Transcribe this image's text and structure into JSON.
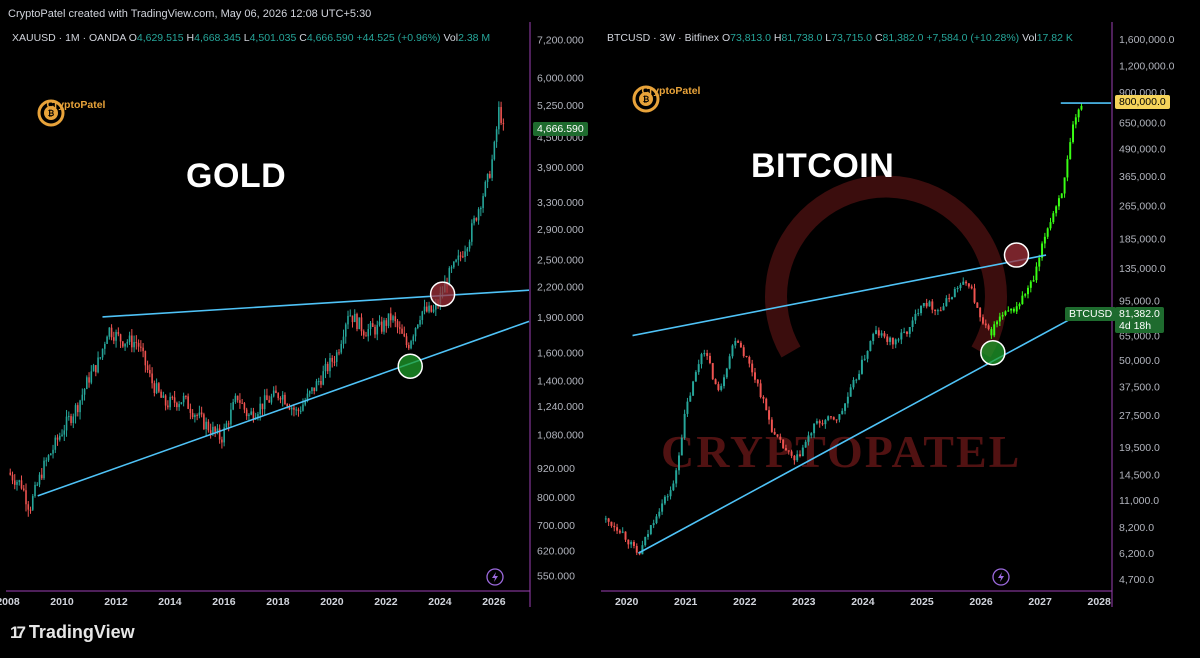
{
  "header": {
    "text": "CryptoPatel created with TradingView.com, May 06, 2026 12:08 UTC+5:30"
  },
  "footer": {
    "brand": "TradingView",
    "mark": "17"
  },
  "colors": {
    "bull": "#26a69a",
    "bear": "#ef5350",
    "trend": "#4fc3f7",
    "neon": "#39ff14",
    "axis": "#9b3fb3",
    "bg": "#000000",
    "label_green": "#1e6b2e",
    "label_yellow": "#f5d35a"
  },
  "left": {
    "ohlc": {
      "symbol": "XAUUSD · 1M · OANDA",
      "o_label": "O",
      "o": "4,629.515",
      "h_label": "H",
      "h": "4,668.345",
      "l_label": "L",
      "l": "4,501.035",
      "c_label": "C",
      "c": "4,666.590",
      "change": "+44.525 (+0.96%)",
      "vol_label": "Vol",
      "vol": "2.38 M"
    },
    "title": "GOLD",
    "logo_text": "CryptoPatel",
    "price_label": "4,666.590",
    "icon": "lightning-icon"
  },
  "right": {
    "ohlc": {
      "symbol": "BTCUSD · 3W · Bitfinex",
      "o_label": "O",
      "o": "73,813.0",
      "h_label": "H",
      "h": "81,738.0",
      "l_label": "L",
      "l": "73,715.0",
      "c_label": "C",
      "c": "81,382.0",
      "change": "+7,584.0 (+10.28%)",
      "vol_label": "Vol",
      "vol": "17.82 K"
    },
    "title": "BITCOIN",
    "logo_text": "CryptoPatel",
    "watermark": "CRYPTOPATEL",
    "target_label": "800,000.0",
    "ticker_label": "BTCUSD",
    "price_label": "81,382.0",
    "countdown": "4d 18h",
    "icon": "lightning-icon"
  },
  "chart_data": [
    {
      "type": "line",
      "title": "GOLD",
      "symbol": "XAUUSD",
      "scale": "log",
      "x_ticks": [
        "2008",
        "2010",
        "2012",
        "2014",
        "2016",
        "2018",
        "2020",
        "2022",
        "2024",
        "2026"
      ],
      "y_ticks": [
        "7,200.000",
        "6,000.000",
        "5,250.000",
        "4,500.000",
        "3,900.000",
        "3,300.000",
        "2,900.000",
        "2,500.000",
        "2,200.000",
        "1,900.000",
        "1,600.000",
        "1,400.000",
        "1,240.000",
        "1,080.000",
        "920.000",
        "800.000",
        "700.000",
        "620.000",
        "550.000"
      ],
      "ylim": [
        520,
        7600
      ],
      "xlim": [
        2008.0,
        2027.3
      ],
      "series": [
        {
          "x": [
            2008.0,
            2008.5,
            2008.8,
            2009.3,
            2010.0,
            2010.6,
            2011.0,
            2011.4,
            2011.7,
            2012.2,
            2012.8,
            2013.3,
            2013.8,
            2014.5,
            2015.2,
            2015.9,
            2016.5,
            2016.9,
            2017.5,
            2018.1,
            2018.7,
            2019.3,
            2019.8,
            2020.2,
            2020.6,
            2021.2,
            2021.8,
            2022.2,
            2022.8,
            2023.3,
            2023.8,
            2024.3,
            2024.7,
            2025.1,
            2025.5,
            2025.8,
            2026.0,
            2026.2,
            2026.35
          ],
          "y": [
            900,
            850,
            760,
            920,
            1100,
            1250,
            1420,
            1550,
            1800,
            1700,
            1680,
            1400,
            1250,
            1280,
            1150,
            1060,
            1300,
            1180,
            1260,
            1320,
            1200,
            1340,
            1480,
            1600,
            1950,
            1780,
            1800,
            1900,
            1650,
            1950,
            1950,
            2300,
            2500,
            2800,
            3300,
            3700,
            4200,
            5200,
            4667
          ]
        }
      ],
      "annotations": [
        "ascending support trendline",
        "resistance trendline",
        "breakout circle",
        "retest circle"
      ]
    },
    {
      "type": "line",
      "title": "BITCOIN",
      "symbol": "BTCUSD",
      "scale": "log",
      "x_ticks": [
        "2020",
        "2021",
        "2022",
        "2023",
        "2024",
        "2025",
        "2026",
        "2027",
        "2028"
      ],
      "y_ticks": [
        "1,600,000.0",
        "1,200,000.0",
        "900,000.0",
        "650,000.0",
        "490,000.0",
        "365,000.0",
        "265,000.0",
        "185,000.0",
        "135,000.0",
        "95,000.0",
        "65,000.0",
        "50,000.0",
        "37,500.0",
        "27,500.0",
        "19,500.0",
        "14,500.0",
        "11,000.0",
        "8,200.0",
        "6,200.0",
        "4,700.0"
      ],
      "ylim": [
        4300,
        1800000
      ],
      "xlim": [
        2019.6,
        2028.2
      ],
      "series": [
        {
          "x": [
            2019.6,
            2019.9,
            2020.2,
            2020.5,
            2020.8,
            2021.0,
            2021.3,
            2021.55,
            2021.85,
            2022.2,
            2022.5,
            2022.85,
            2023.2,
            2023.6,
            2023.9,
            2024.2,
            2024.5,
            2024.8,
            2025.0,
            2025.3,
            2025.6,
            2025.8,
            2026.0,
            2026.15,
            2026.3,
            2026.6,
            2026.9,
            2027.1,
            2027.4,
            2027.55,
            2027.7
          ],
          "y": [
            9000,
            8000,
            6000,
            9500,
            13000,
            29000,
            58000,
            35000,
            65000,
            40000,
            22000,
            16500,
            25000,
            27000,
            42000,
            68000,
            60000,
            70000,
            95000,
            85000,
            110000,
            115000,
            75000,
            66000,
            78000,
            88000,
            120000,
            200000,
            330000,
            600000,
            800000
          ]
        }
      ],
      "annotations": [
        "rising wedge upper trendline",
        "rising wedge lower trendline",
        "breakout circle",
        "retest circle",
        "projection to 800,000.0"
      ]
    }
  ]
}
